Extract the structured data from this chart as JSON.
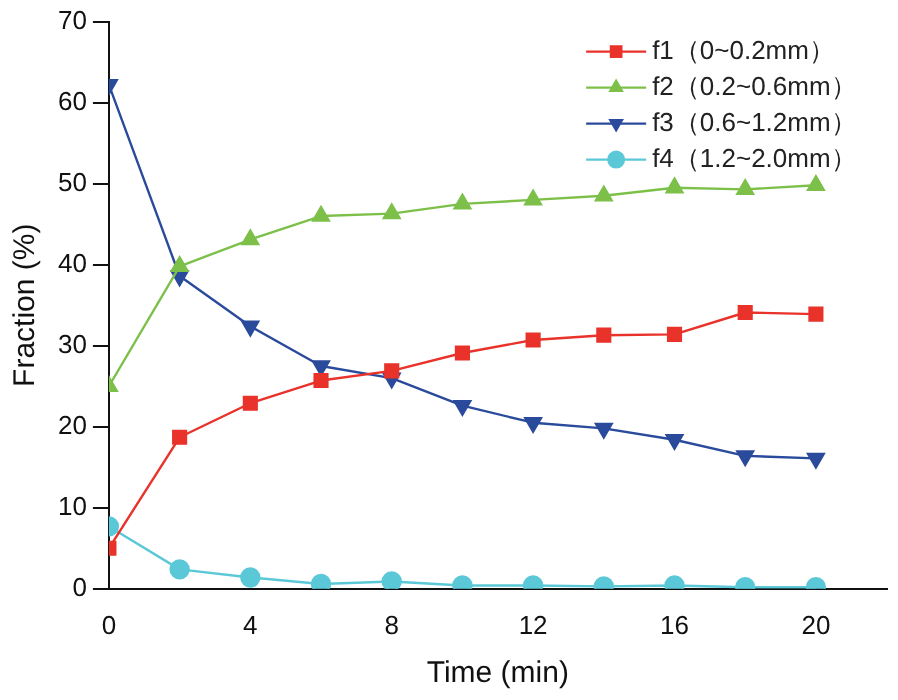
{
  "chart_data": {
    "type": "line",
    "xlabel": "Time (min)",
    "ylabel": "Fraction (%)",
    "x": [
      0,
      2,
      4,
      6,
      8,
      10,
      12,
      14,
      16,
      18,
      20
    ],
    "xlim": [
      0,
      22
    ],
    "xticks": [
      0,
      4,
      8,
      12,
      16,
      20
    ],
    "ylim": [
      0,
      70
    ],
    "yticks": [
      0,
      10,
      20,
      30,
      40,
      50,
      60,
      70
    ],
    "grid": false,
    "legend": "top right",
    "line_style": "solid",
    "series": [
      {
        "name": "f1（0~0.2mm）",
        "color": "#e8322a",
        "marker": "square",
        "values": [
          5,
          18.7,
          22.9,
          25.7,
          26.9,
          29.1,
          30.7,
          31.3,
          31.4,
          34.1,
          33.9
        ]
      },
      {
        "name": "f2（0.2~0.6mm）",
        "color": "#7cc04a",
        "marker": "triangle",
        "values": [
          25,
          39.8,
          43.1,
          46,
          46.3,
          47.5,
          48,
          48.5,
          49.5,
          49.3,
          49.8
        ]
      },
      {
        "name": "f3（0.6~1.2mm）",
        "color": "#2a4a9c",
        "marker": "triangle-down",
        "values": [
          62.2,
          38.6,
          32.4,
          27.5,
          26,
          22.6,
          20.5,
          19.8,
          18.4,
          16.4,
          16.1
        ]
      },
      {
        "name": "f4（1.2~2.0mm）",
        "color": "#5bc8d8",
        "marker": "circle",
        "values": [
          7.7,
          2.4,
          1.4,
          0.6,
          0.9,
          0.4,
          0.4,
          0.3,
          0.4,
          0.2,
          0.2
        ]
      }
    ]
  }
}
